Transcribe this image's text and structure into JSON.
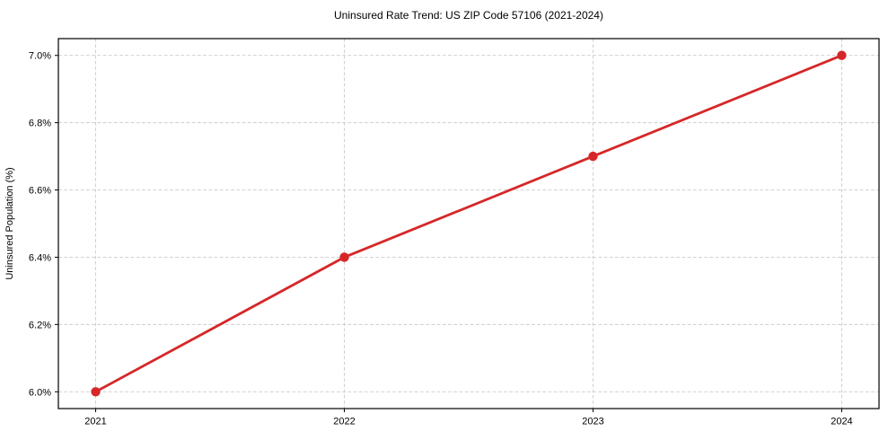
{
  "chart_data": {
    "type": "line",
    "title": "Uninsured Rate Trend: US ZIP Code 57106 (2021-2024)",
    "xlabel": "",
    "ylabel": "Uninsured Population (%)",
    "x": [
      2021,
      2022,
      2023,
      2024
    ],
    "values": [
      6.0,
      6.4,
      6.7,
      7.0
    ],
    "x_ticks": [
      {
        "value": 2021,
        "label": "2021"
      },
      {
        "value": 2022,
        "label": "2022"
      },
      {
        "value": 2023,
        "label": "2023"
      },
      {
        "value": 2024,
        "label": "2024"
      }
    ],
    "y_ticks": [
      {
        "value": 6.0,
        "label": "6.0%"
      },
      {
        "value": 6.2,
        "label": "6.2%"
      },
      {
        "value": 6.4,
        "label": "6.4%"
      },
      {
        "value": 6.6,
        "label": "6.6%"
      },
      {
        "value": 6.8,
        "label": "6.8%"
      },
      {
        "value": 7.0,
        "label": "7.0%"
      }
    ],
    "xlim": [
      2020.85,
      2024.15
    ],
    "ylim": [
      5.95,
      7.05
    ],
    "grid": true,
    "grid_style": "dashed",
    "legend_position": "none",
    "marker": "circle",
    "colors": {
      "line": "#d62728",
      "marker": "#d62728",
      "grid": "#cccccc",
      "axis": "#000000",
      "text": "#000000"
    }
  }
}
